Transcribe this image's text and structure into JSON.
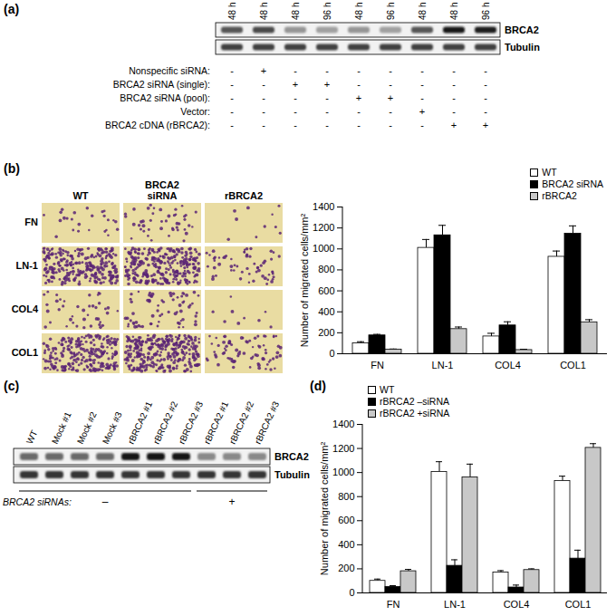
{
  "panel_labels": [
    "(a)",
    "(b)",
    "(c)",
    "(d)"
  ],
  "blot_a": {
    "lanes": [
      "48 h",
      "48 h",
      "48 h",
      "96 h",
      "48 h",
      "96 h",
      "48 h",
      "48 h",
      "96 h"
    ],
    "bands": [
      "BRCA2",
      "Tubulin"
    ],
    "brca2_levels": [
      0.7,
      0.75,
      0.4,
      0.35,
      0.4,
      0.35,
      0.7,
      1.0,
      0.95
    ],
    "tubulin_levels": [
      0.8,
      0.8,
      0.8,
      0.8,
      0.8,
      0.8,
      0.8,
      0.8,
      0.8
    ],
    "rows": [
      {
        "label": "Nonspecific siRNA:",
        "signs": [
          "-",
          "+",
          "-",
          "-",
          "-",
          "-",
          "-",
          "-",
          "-"
        ]
      },
      {
        "label": "BRCA2 siRNA (single):",
        "signs": [
          "-",
          "-",
          "+",
          "+",
          "-",
          "-",
          "-",
          "-",
          "-"
        ]
      },
      {
        "label": "BRCA2 siRNA (pool):",
        "signs": [
          "-",
          "-",
          "-",
          "-",
          "+",
          "+",
          "-",
          "-",
          "-"
        ]
      },
      {
        "label": "Vector:",
        "signs": [
          "-",
          "-",
          "-",
          "-",
          "-",
          "-",
          "+",
          "-",
          "-"
        ]
      },
      {
        "label": "BRCA2 cDNA (rBRCA2):",
        "signs": [
          "-",
          "-",
          "-",
          "-",
          "-",
          "-",
          "-",
          "+",
          "+"
        ]
      }
    ]
  },
  "images_b": {
    "columns": [
      "WT",
      "BRCA2 siRNA",
      "rBRCA2"
    ],
    "rows": [
      "FN",
      "LN-1",
      "COL4",
      "COL1"
    ]
  },
  "blot_c": {
    "lanes": [
      "WT",
      "Mock #1",
      "Mock #2",
      "Mock #3",
      "rBRCA2 #1",
      "rBRCA2 #2",
      "rBRCA2 #3",
      "rBRCA2 #1",
      "rBRCA2 #2",
      "rBRCA2 #3"
    ],
    "bands": [
      "BRCA2",
      "Tubulin"
    ],
    "brca2_levels": [
      0.6,
      0.6,
      0.6,
      0.6,
      1.0,
      1.0,
      1.0,
      0.45,
      0.45,
      0.45
    ],
    "tubulin_levels": [
      0.85,
      0.85,
      0.85,
      0.85,
      0.85,
      0.85,
      0.85,
      0.85,
      0.85,
      0.85
    ],
    "treatment_label": "BRCA2 siRNAs:",
    "treatment": [
      "–",
      "–",
      "–",
      "–",
      "–",
      "–",
      "–",
      "+",
      "+",
      "+"
    ]
  },
  "chart_data": [
    {
      "type": "bar",
      "panel": "(b)",
      "categories": [
        "FN",
        "LN-1",
        "COL4",
        "COL1"
      ],
      "y_label": "Number of migrated cells/mm²",
      "ylim": [
        0,
        1400
      ],
      "yticks": [
        0,
        200,
        400,
        600,
        800,
        1000,
        1200,
        1400
      ],
      "legend": "top-right",
      "series": [
        {
          "name": "WT",
          "color": "#ffffff",
          "values": [
            100,
            1010,
            165,
            925
          ],
          "errors": [
            15,
            80,
            30,
            55
          ]
        },
        {
          "name": "BRCA2 siRNA",
          "color": "#000000",
          "values": [
            175,
            1130,
            270,
            1145
          ],
          "errors": [
            10,
            95,
            35,
            75
          ]
        },
        {
          "name": "rBRCA2",
          "color": "#c8c8c8",
          "values": [
            40,
            235,
            35,
            300
          ],
          "errors": [
            5,
            20,
            8,
            25
          ]
        }
      ]
    },
    {
      "type": "bar",
      "panel": "(d)",
      "categories": [
        "FN",
        "LN-1",
        "COL4",
        "COL1"
      ],
      "y_label": "Number of migrated cells/mm²",
      "ylim": [
        0,
        1400
      ],
      "yticks": [
        0,
        200,
        400,
        600,
        800,
        1000,
        1200,
        1400
      ],
      "legend": "top-left",
      "series": [
        {
          "name": "WT",
          "color": "#ffffff",
          "values": [
            100,
            1005,
            170,
            930
          ],
          "errors": [
            15,
            85,
            15,
            40
          ]
        },
        {
          "name": "rBRCA2 –siRNA",
          "color": "#000000",
          "values": [
            50,
            225,
            45,
            285
          ],
          "errors": [
            10,
            50,
            20,
            70
          ]
        },
        {
          "name": "rBRCA2 +siRNA",
          "color": "#c8c8c8",
          "values": [
            180,
            960,
            190,
            1205
          ],
          "errors": [
            15,
            110,
            10,
            35
          ]
        }
      ]
    }
  ]
}
